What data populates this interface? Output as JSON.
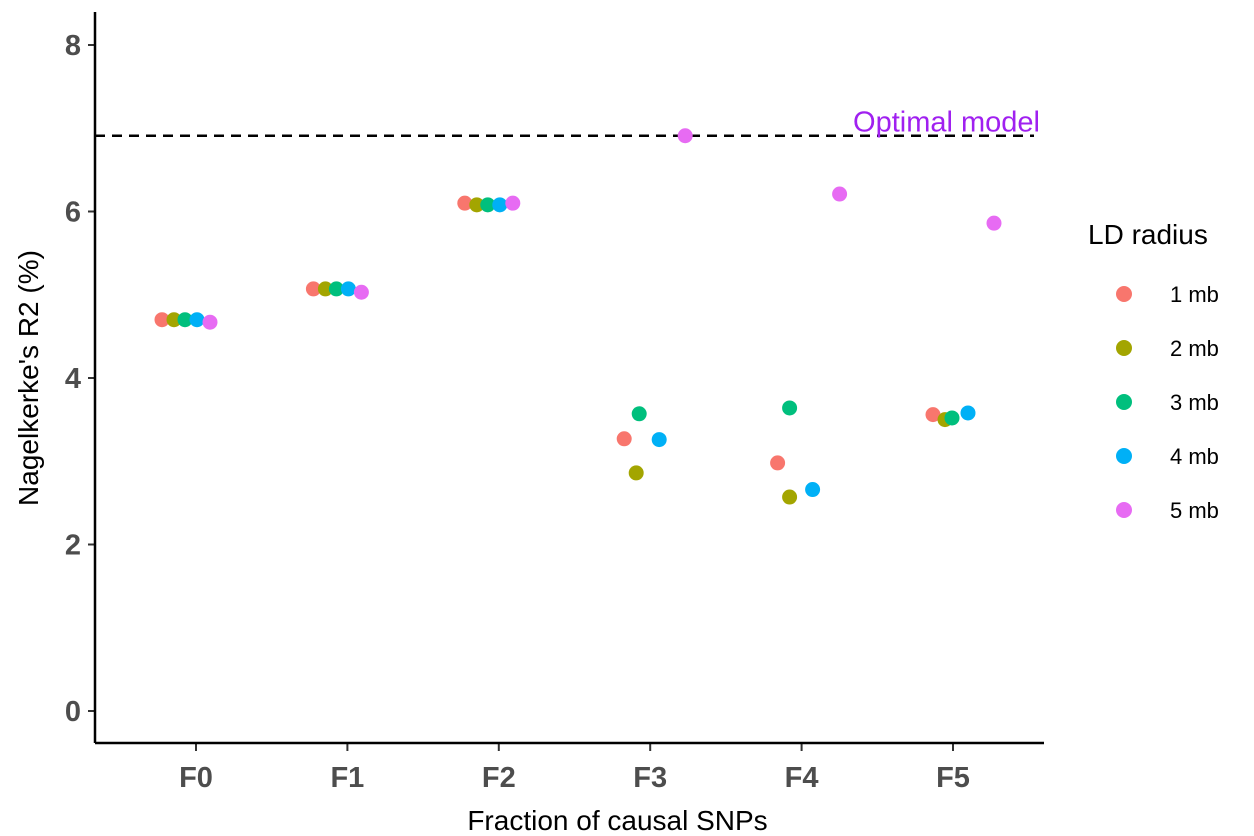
{
  "chart_data": {
    "type": "scatter",
    "categories": [
      "F0",
      "F1",
      "F2",
      "F3",
      "F4",
      "F5"
    ],
    "xlabel": "Fraction of causal SNPs",
    "ylabel": "Nagelkerke's R2 (%)",
    "ylim": [
      -0.4,
      8.4
    ],
    "yticks": [
      0,
      2,
      4,
      6,
      8
    ],
    "grid": false,
    "legend": {
      "title": "LD radius",
      "placement": "right"
    },
    "series": [
      {
        "name": "1 mb",
        "color": "#F8766D",
        "values": [
          4.7,
          5.07,
          6.1,
          3.27,
          2.98,
          3.56
        ]
      },
      {
        "name": "2 mb",
        "color": "#A3A500",
        "values": [
          4.7,
          5.07,
          6.08,
          2.86,
          2.57,
          3.5
        ]
      },
      {
        "name": "3 mb",
        "color": "#00BF7D",
        "values": [
          4.7,
          5.07,
          6.08,
          3.57,
          3.64,
          3.52
        ]
      },
      {
        "name": "4 mb",
        "color": "#00B0F6",
        "values": [
          4.7,
          5.07,
          6.08,
          3.26,
          2.66,
          3.58
        ]
      },
      {
        "name": "5 mb",
        "color": "#E76BF3",
        "values": [
          4.67,
          5.03,
          6.1,
          6.91,
          6.21,
          5.86
        ]
      }
    ],
    "reference_line": {
      "y": 6.91,
      "style": "dashed",
      "color": "#000000",
      "label": "Optimal model",
      "label_color": "#A020F0"
    }
  }
}
